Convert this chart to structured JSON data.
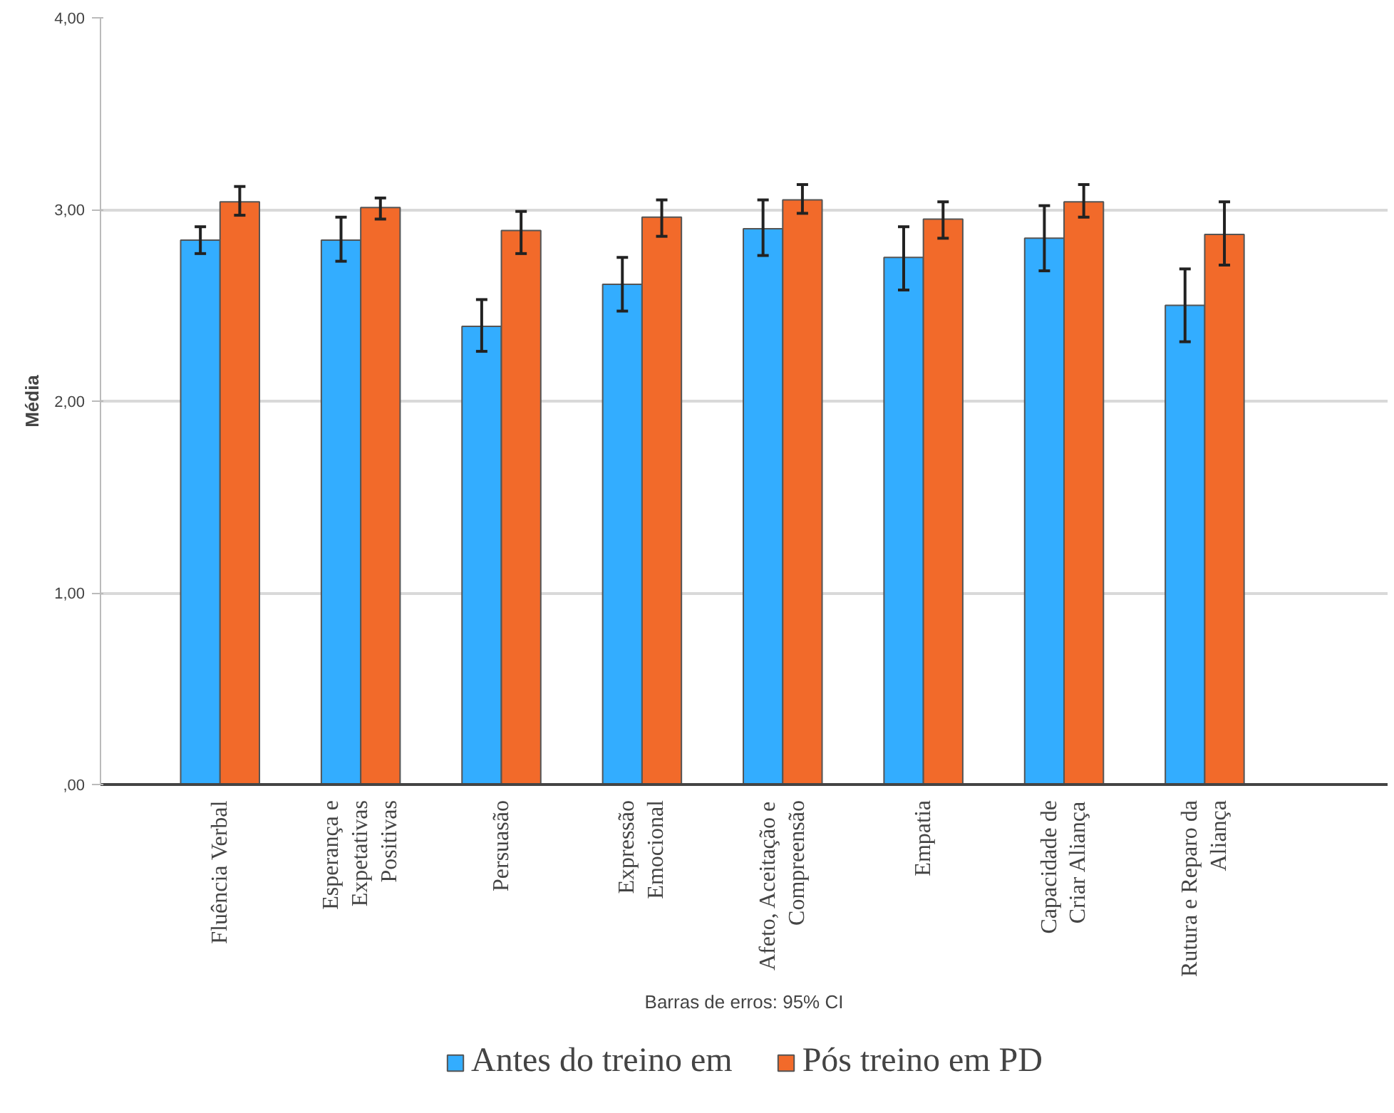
{
  "chart_data": {
    "type": "bar",
    "ylabel": "Média",
    "categories": [
      "Fluência Verbal",
      "Esperança e Expetativas Positivas",
      "Persuasão",
      "Expressão Emocional",
      "Afeto, Aceitação e Compreensão",
      "Empatia",
      "Capacidade de Criar Aliança",
      "Rutura e Reparo da Aliança"
    ],
    "series": [
      {
        "name": "Antes do treino em",
        "color": "#33adff",
        "values": [
          2.84,
          2.84,
          2.39,
          2.61,
          2.9,
          2.75,
          2.85,
          2.5
        ],
        "errors": [
          [
            2.77,
            2.91
          ],
          [
            2.73,
            2.96
          ],
          [
            2.26,
            2.53
          ],
          [
            2.47,
            2.75
          ],
          [
            2.76,
            3.05
          ],
          [
            2.58,
            2.91
          ],
          [
            2.68,
            3.02
          ],
          [
            2.31,
            2.69
          ]
        ]
      },
      {
        "name": "Pós treino em PD",
        "color": "#f26a2a",
        "values": [
          3.04,
          3.01,
          2.89,
          2.96,
          3.05,
          2.95,
          3.04,
          2.87
        ],
        "errors": [
          [
            2.97,
            3.12
          ],
          [
            2.95,
            3.06
          ],
          [
            2.77,
            2.99
          ],
          [
            2.86,
            3.05
          ],
          [
            2.98,
            3.13
          ],
          [
            2.85,
            3.04
          ],
          [
            2.96,
            3.13
          ],
          [
            2.71,
            3.04
          ]
        ]
      }
    ],
    "ylim": [
      0,
      4
    ],
    "yticks": [
      {
        "value": 0,
        "label": ",00"
      },
      {
        "value": 1,
        "label": "1,00"
      },
      {
        "value": 2,
        "label": "2,00"
      },
      {
        "value": 3,
        "label": "3,00"
      },
      {
        "value": 4,
        "label": "4,00"
      }
    ],
    "grid": "y",
    "legend": "bottom",
    "annotations": [
      "Barras de erros: 95% CI"
    ]
  }
}
